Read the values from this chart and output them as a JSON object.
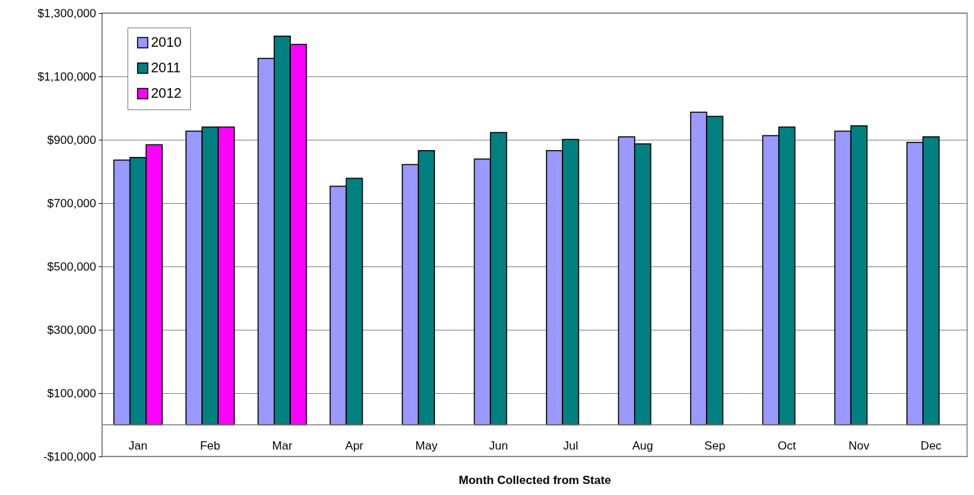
{
  "chart_data": {
    "type": "bar",
    "xlabel": "Month Collected from State",
    "categories": [
      "Jan",
      "Feb",
      "Mar",
      "Apr",
      "May",
      "Jun",
      "Jul",
      "Aug",
      "Sep",
      "Oct",
      "Nov",
      "Dec"
    ],
    "series": [
      {
        "name": "2010",
        "color": "#9999ff",
        "values": [
          836000,
          927000,
          1157000,
          753000,
          822000,
          839000,
          866000,
          909000,
          987000,
          913000,
          927000,
          892000
        ]
      },
      {
        "name": "2011",
        "color": "#008080",
        "values": [
          844000,
          940000,
          1227000,
          778000,
          866000,
          923000,
          901000,
          887000,
          974000,
          940000,
          944000,
          909000
        ]
      },
      {
        "name": "2012",
        "color": "#ff00ff",
        "values": [
          884000,
          940000,
          1201000,
          null,
          null,
          null,
          null,
          null,
          null,
          null,
          null,
          null
        ]
      }
    ],
    "ylim": [
      -100000,
      1300000
    ],
    "yticks": [
      {
        "value": -100000,
        "label": "-$100,000"
      },
      {
        "value": 100000,
        "label": "$100,000"
      },
      {
        "value": 300000,
        "label": "$300,000"
      },
      {
        "value": 500000,
        "label": "$500,000"
      },
      {
        "value": 700000,
        "label": "$700,000"
      },
      {
        "value": 900000,
        "label": "$900,000"
      },
      {
        "value": 1100000,
        "label": "$1,100,000"
      },
      {
        "value": 1300000,
        "label": "$1,300,000"
      }
    ],
    "ref_lines": [
      {
        "axis": "y",
        "value": 0,
        "color": "#808080"
      }
    ],
    "grid": "y",
    "legend": "top left"
  }
}
